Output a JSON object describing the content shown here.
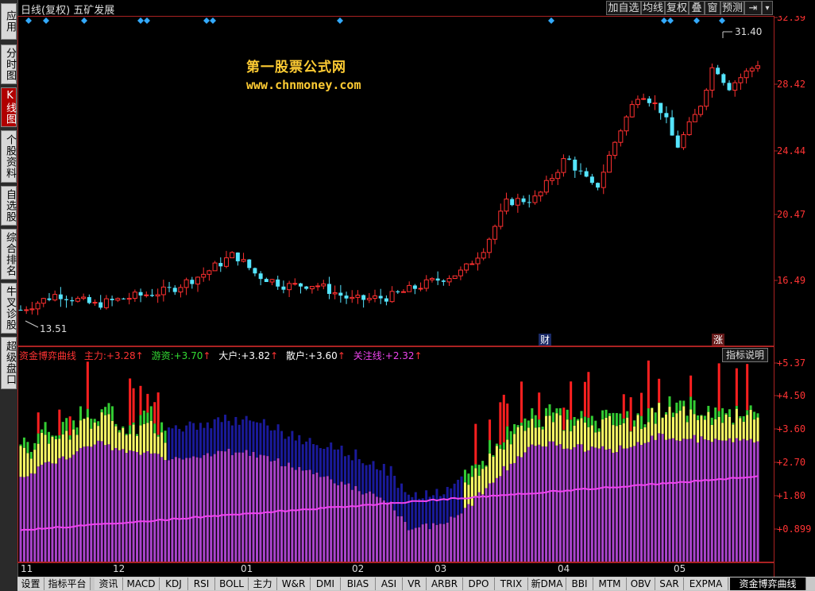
{
  "sidebar": {
    "items": [
      {
        "label": "应用",
        "active": false
      },
      {
        "label": "分时图",
        "active": false
      },
      {
        "label": "K线图",
        "active": true
      },
      {
        "label": "个股资料",
        "active": false
      },
      {
        "label": "自选股",
        "active": false
      },
      {
        "label": "综合排名",
        "active": false
      },
      {
        "label": "牛叉诊股",
        "active": false
      },
      {
        "label": "超级盘口",
        "active": false
      }
    ]
  },
  "topbar": {
    "title": "日线(复权)  五矿发展",
    "buttons": [
      "加自选",
      "均线",
      "复权",
      "叠",
      "窗",
      "预测",
      "⇥",
      "▾"
    ]
  },
  "watermark": {
    "line1": "第一股票公式网",
    "line2": "www.chnmoney.com"
  },
  "price_axis": {
    "labels": [
      "32.39",
      "28.42",
      "24.44",
      "20.47",
      "16.49"
    ]
  },
  "price_annotations": {
    "high": "31.40",
    "low": "13.51",
    "markers": [
      "财",
      "涨"
    ]
  },
  "indicator": {
    "name": "资金博弈曲线",
    "items": [
      {
        "label": "主力:",
        "value": "+3.28",
        "arrow": "↑",
        "color": "#ff3030"
      },
      {
        "label": "游资:",
        "value": "+3.70",
        "arrow": "↑",
        "color": "#33dd33"
      },
      {
        "label": "大户:",
        "value": "+3.82",
        "arrow": "↑",
        "color": "#ffffff"
      },
      {
        "label": "散户:",
        "value": "+3.60",
        "arrow": "↑",
        "color": "#ffffff"
      },
      {
        "label": "关注线:",
        "value": "+2.32",
        "arrow": "↑",
        "color": "#ee44ee"
      }
    ],
    "help_button": "指标说明",
    "axis_labels": [
      "+5.37",
      "+4.50",
      "+3.60",
      "+2.70",
      "+1.80",
      "+0.899"
    ]
  },
  "xaxis": {
    "labels": [
      "11",
      "12",
      "01",
      "02",
      "03",
      "04",
      "05"
    ]
  },
  "tabs": [
    "设置",
    "指标平台",
    "资讯",
    "MACD",
    "KDJ",
    "RSI",
    "BOLL",
    "主力",
    "W&R",
    "DMI",
    "BIAS",
    "ASI",
    "VR",
    "ARBR",
    "DPO",
    "TRIX",
    "新DMA",
    "BBI",
    "MTM",
    "OBV",
    "SAR",
    "EXPMA",
    "资金博弈曲线"
  ],
  "active_tab": "资金博弈曲线",
  "chart_data": {
    "type": "candlestick",
    "price_ylim": [
      12.5,
      32.39
    ],
    "indicator_ylim": [
      0,
      5.37
    ],
    "colors": {
      "up": "#ff3030",
      "down": "#55e5ff",
      "main": "#ff2020",
      "hot": "#33cc33",
      "big": "#ffff66",
      "retail": "#1a1a9a",
      "base": "#aa44cc",
      "focus": "#ee44ee"
    }
  }
}
